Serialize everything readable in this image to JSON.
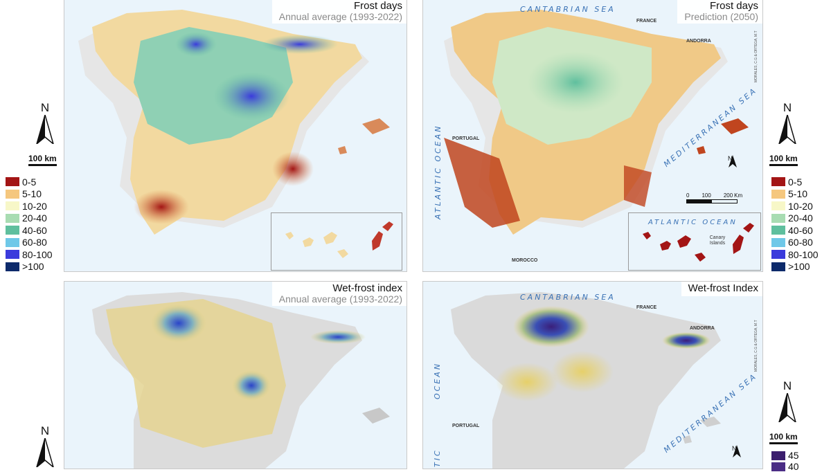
{
  "panels": {
    "top_left": {
      "title": "Frost days",
      "subtitle": "Annual average (1993-2022)"
    },
    "top_right": {
      "title": "Frost days",
      "subtitle": "Prediction (2050)"
    },
    "bottom_left": {
      "title": "Wet-frost index",
      "subtitle": "Annual average (1993-2022)"
    },
    "bottom_right": {
      "title": "Wet-frost Index",
      "subtitle": ""
    }
  },
  "seas": {
    "cantabrian": "CANTABRIAN SEA",
    "mediterranean": "MEDITERRANEAN SEA",
    "atlantic_ocean_vertical": "ATLANTIC OCEAN",
    "atlantic_ocean_inset": "ATLANTIC OCEAN",
    "ocean_short": "OCEAN",
    "atlantic_partial": "TIC"
  },
  "countries": {
    "france": "FRANCE",
    "andorra": "ANDORRA",
    "portugal": "PORTUGAL",
    "morocco": "MOROCCO"
  },
  "canary_label": "Canary Islands",
  "credit": "MORALES, C.G & ORTEGA, M.T",
  "north_label": "N",
  "scale_label": "100 km",
  "panel_scale": {
    "ticks": [
      "0",
      "100",
      "200",
      "Km"
    ]
  },
  "frost_legend": [
    {
      "label": "0-5",
      "color": "#a31515"
    },
    {
      "label": "5-10",
      "color": "#f5c77e"
    },
    {
      "label": "10-20",
      "color": "#f7f7c8"
    },
    {
      "label": "20-40",
      "color": "#a8dcb2"
    },
    {
      "label": "40-60",
      "color": "#5fbf9e"
    },
    {
      "label": "60-80",
      "color": "#6fc8e8"
    },
    {
      "label": "80-100",
      "color": "#3b3bdc"
    },
    {
      "label": ">100",
      "color": "#0d2a6b"
    }
  ],
  "wet_frost_scale": [
    {
      "label": "45",
      "color": "#3b1e6e"
    },
    {
      "label": "40",
      "color": "#4a2c85"
    }
  ]
}
